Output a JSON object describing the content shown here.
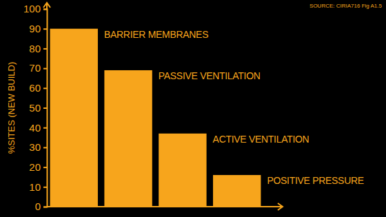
{
  "chart_data": {
    "type": "bar",
    "y_label": "%SITES (NEW BUILD)",
    "annotations": [
      "SOURCE: CIRIA716 Fig A1.5"
    ],
    "categories": [
      "BARRIER MEMBRANES",
      "PASSIVE VENTILATION",
      "ACTIVE VENTILATION",
      "POSITIVE PRESSURE"
    ],
    "values": [
      90,
      69,
      37,
      16
    ],
    "color": "#f7a51c",
    "ylim": [
      0,
      100
    ],
    "yticks": [
      0,
      10,
      20,
      30,
      40,
      50,
      60,
      70,
      80,
      90,
      100
    ],
    "grid": false
  }
}
